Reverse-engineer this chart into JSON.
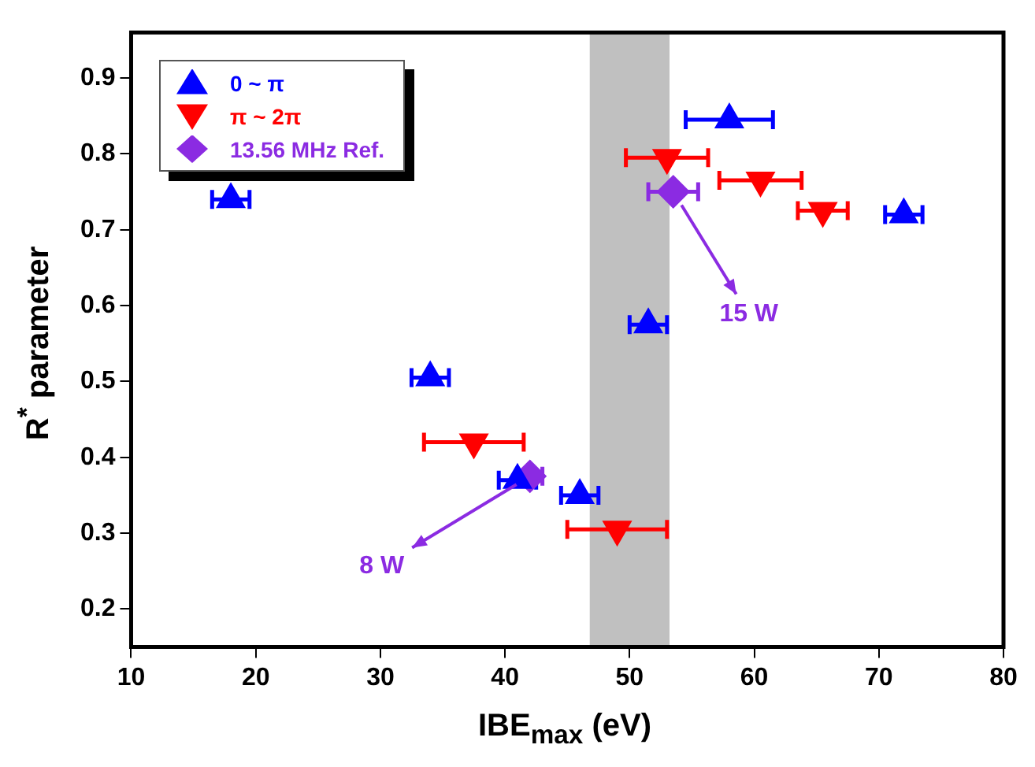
{
  "chart_data": {
    "type": "scatter",
    "xlabel": "IBE$_{max}$ (eV)",
    "ylabel": "R$^{*}$ parameter",
    "xlim": [
      10,
      80
    ],
    "xticks": [
      10,
      20,
      30,
      40,
      50,
      60,
      70,
      80
    ],
    "ylim": [
      0.15,
      0.96
    ],
    "yticks": [
      0.2,
      0.3,
      0.4,
      0.5,
      0.6,
      0.7,
      0.8,
      0.9
    ],
    "grid": false,
    "legend": "top left",
    "series": [
      {
        "name": "0 ~ π",
        "color": "#0000ff",
        "marker": "triangle",
        "x": [
          18,
          34,
          41,
          46,
          51.5,
          58,
          72
        ],
        "values": [
          0.74,
          0.505,
          0.37,
          0.35,
          0.575,
          0.845,
          0.72
        ],
        "xerrors": [
          1.5,
          1.5,
          1.5,
          1.5,
          1.5,
          3.5,
          1.5
        ]
      },
      {
        "name": "π ~ 2π",
        "color": "#ff0000",
        "marker": "triangle-down",
        "x": [
          37.5,
          49,
          53,
          60.5,
          65.5
        ],
        "values": [
          0.42,
          0.305,
          0.795,
          0.765,
          0.725
        ],
        "xerrors": [
          4,
          4,
          3.3,
          3.3,
          2
        ]
      },
      {
        "name": "13.56 MHz Ref.",
        "color": "#8b2be2",
        "marker": "diamond",
        "x": [
          53.5,
          42
        ],
        "values": [
          0.75,
          0.375
        ],
        "xerrors": [
          2,
          1
        ]
      }
    ],
    "bands": [
      {
        "axis": "x",
        "from": 46.8,
        "to": 53.2,
        "color": "#c0c0c0"
      }
    ],
    "annotations": [
      "15 W",
      "8 W"
    ]
  }
}
